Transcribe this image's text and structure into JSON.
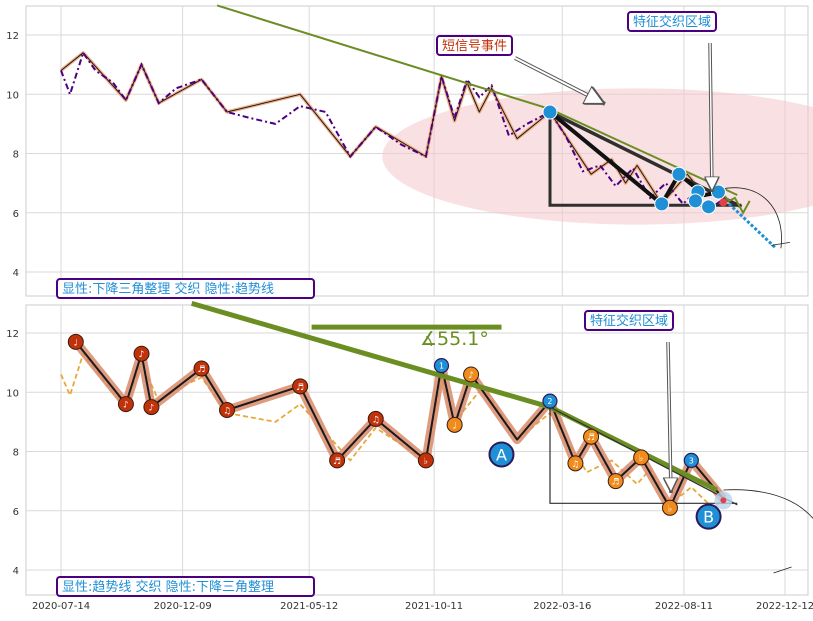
{
  "colors": {
    "panel_bg": "#ffffff",
    "grid": "#d9d9d9",
    "frame": "#cccccc",
    "price_line_top": "#4b0082",
    "price_line_bottom": "#e8a93a",
    "zigzag_fill": "#f3b089",
    "zigzag_line": "#1a1a1a",
    "trend_line": "#6b8e23",
    "triangle": "#2f2f2f",
    "blue_marker": "#1f8fd6",
    "red_marker": "#c0320c",
    "orange_marker": "#f08c1e",
    "ellipse": "#f2c6cc",
    "label_border": "#4b0082",
    "label_text": "#1f8fd6",
    "event_text": "#c0320c"
  },
  "chart_data": [
    {
      "type": "line",
      "panel": "top",
      "ylim": [
        3.5,
        13
      ],
      "yticks": [
        "4",
        "6",
        "8",
        "10",
        "12"
      ],
      "series": [
        {
          "values_by_date": [
            [
              "2020-07-14",
              10.8
            ],
            [
              "2020-07-25",
              10.0
            ],
            [
              "2020-08-10",
              11.4
            ],
            [
              "2020-08-25",
              10.8
            ],
            [
              "2020-09-15",
              10.4
            ],
            [
              "2020-10-01",
              9.8
            ],
            [
              "2020-10-20",
              11.0
            ],
            [
              "2020-11-10",
              9.7
            ],
            [
              "2020-12-01",
              10.2
            ],
            [
              "2021-01-01",
              10.5
            ],
            [
              "2021-02-01",
              9.4
            ],
            [
              "2021-03-01",
              9.2
            ],
            [
              "2021-04-01",
              9.0
            ],
            [
              "2021-05-01",
              9.6
            ],
            [
              "2021-06-01",
              9.4
            ],
            [
              "2021-07-01",
              7.9
            ],
            [
              "2021-08-01",
              8.9
            ],
            [
              "2021-09-01",
              8.3
            ],
            [
              "2021-10-01",
              7.9
            ],
            [
              "2021-10-20",
              10.6
            ],
            [
              "2021-11-05",
              9.2
            ],
            [
              "2021-11-20",
              10.5
            ],
            [
              "2021-12-05",
              9.9
            ],
            [
              "2021-12-20",
              10.3
            ],
            [
              "2022-01-10",
              8.6
            ],
            [
              "2022-02-01",
              9.0
            ],
            [
              "2022-03-01",
              9.4
            ],
            [
              "2022-03-20",
              8.6
            ],
            [
              "2022-04-10",
              7.4
            ],
            [
              "2022-05-01",
              7.6
            ],
            [
              "2022-05-20",
              6.9
            ],
            [
              "2022-06-10",
              7.5
            ],
            [
              "2022-07-01",
              6.5
            ],
            [
              "2022-07-20",
              7.0
            ],
            [
              "2022-08-10",
              6.3
            ],
            [
              "2022-08-25",
              6.7
            ],
            [
              "2022-09-10",
              6.1
            ],
            [
              "2022-09-25",
              6.4
            ]
          ]
        }
      ],
      "zigzag": [
        [
          "2020-07-14",
          10.8
        ],
        [
          "2020-08-10",
          11.4
        ],
        [
          "2020-10-01",
          9.8
        ],
        [
          "2020-10-20",
          11.0
        ],
        [
          "2020-11-10",
          9.7
        ],
        [
          "2021-01-01",
          10.5
        ],
        [
          "2021-02-01",
          9.4
        ],
        [
          "2021-05-01",
          10.0
        ],
        [
          "2021-07-01",
          7.9
        ],
        [
          "2021-08-01",
          8.9
        ],
        [
          "2021-10-01",
          7.9
        ],
        [
          "2021-10-20",
          10.6
        ],
        [
          "2021-11-05",
          9.1
        ],
        [
          "2021-11-20",
          10.4
        ],
        [
          "2021-12-05",
          9.4
        ],
        [
          "2021-12-20",
          10.2
        ],
        [
          "2022-01-20",
          8.5
        ],
        [
          "2022-03-01",
          9.4
        ],
        [
          "2022-04-20",
          7.3
        ],
        [
          "2022-05-15",
          7.8
        ],
        [
          "2022-06-01",
          7.0
        ],
        [
          "2022-06-15",
          7.6
        ],
        [
          "2022-07-15",
          6.3
        ],
        [
          "2022-08-15",
          7.3
        ],
        [
          "2022-09-05",
          6.6
        ],
        [
          "2022-09-25",
          6.7
        ]
      ],
      "trend_line": [
        [
          "2021-01-20",
          13.0
        ],
        [
          "2022-03-01",
          9.5
        ],
        [
          "2022-10-15",
          6.6
        ]
      ],
      "triangle": {
        "apex": [
          "2022-03-01",
          9.4
        ],
        "base_left": [
          "2022-03-01",
          6.25
        ],
        "base_right": [
          "2022-10-20",
          6.25
        ],
        "right_tip": [
          "2022-10-20",
          6.2
        ],
        "upper_edge": [
          [
            "2022-03-01",
            9.4
          ],
          [
            "2022-10-20",
            6.2
          ]
        ],
        "inner_edge": [
          [
            "2022-03-01",
            9.4
          ],
          [
            "2022-07-15",
            6.3
          ]
        ]
      },
      "thick_segments": [
        [
          [
            "2022-03-01",
            9.4
          ],
          [
            "2022-07-15",
            6.3
          ]
        ],
        [
          [
            "2022-07-15",
            6.3
          ],
          [
            "2022-08-05",
            7.3
          ]
        ],
        [
          [
            "2022-08-05",
            7.3
          ],
          [
            "2022-09-05",
            6.6
          ]
        ],
        [
          [
            "2022-09-05",
            6.6
          ],
          [
            "2022-09-25",
            6.7
          ]
        ]
      ],
      "blue_markers": [
        [
          "2022-03-01",
          9.4
        ],
        [
          "2022-07-15",
          6.3
        ],
        [
          "2022-08-05",
          7.3
        ],
        [
          "2022-08-28",
          6.7
        ],
        [
          "2022-08-25",
          6.4
        ],
        [
          "2022-09-10",
          6.2
        ],
        [
          "2022-09-22",
          6.7
        ]
      ],
      "green_tail": [
        [
          "2022-09-25",
          6.7
        ],
        [
          "2022-10-05",
          6.4
        ],
        [
          "2022-10-12",
          6.5
        ],
        [
          "2022-10-22",
          6.0
        ],
        [
          "2022-10-30",
          6.4
        ]
      ],
      "projection_dashed": [
        [
          "2022-10-05",
          6.3
        ],
        [
          "2022-12-01",
          4.8
        ]
      ],
      "ellipse": {
        "center": [
          "2022-06-15",
          7.9
        ],
        "rx_days": 310,
        "ry_value": 2.3
      },
      "annotations": {
        "event": "短信号事件",
        "zone": "特征交织区域",
        "footer": "显性:下降三角整理 交织 隐性:趋势线"
      }
    },
    {
      "type": "line",
      "panel": "bottom",
      "ylim": [
        3.5,
        13
      ],
      "yticks": [
        "4",
        "6",
        "8",
        "10",
        "12"
      ],
      "xticks": [
        "2020-07-14",
        "2020-12-09",
        "2021-05-12",
        "2021-10-11",
        "2022-03-16",
        "2022-08-11",
        "2022-12-12"
      ],
      "series": [
        {
          "values_by_date": [
            [
              "2020-07-14",
              10.6
            ],
            [
              "2020-07-25",
              9.9
            ],
            [
              "2020-08-10",
              11.3
            ],
            [
              "2020-09-15",
              10.0
            ],
            [
              "2020-10-01",
              9.6
            ],
            [
              "2020-10-20",
              11.0
            ],
            [
              "2020-11-10",
              9.7
            ],
            [
              "2020-12-01",
              10.1
            ],
            [
              "2021-01-01",
              10.5
            ],
            [
              "2021-02-01",
              9.3
            ],
            [
              "2021-04-01",
              9.0
            ],
            [
              "2021-05-01",
              9.6
            ],
            [
              "2021-07-01",
              7.7
            ],
            [
              "2021-08-01",
              8.8
            ],
            [
              "2021-10-01",
              7.7
            ],
            [
              "2021-10-20",
              10.5
            ],
            [
              "2021-11-05",
              9.0
            ],
            [
              "2021-12-10",
              10.2
            ],
            [
              "2022-01-20",
              8.4
            ],
            [
              "2022-03-01",
              9.3
            ],
            [
              "2022-04-15",
              7.3
            ],
            [
              "2022-05-15",
              7.7
            ],
            [
              "2022-06-15",
              6.9
            ],
            [
              "2022-07-01",
              7.4
            ],
            [
              "2022-07-25",
              6.2
            ],
            [
              "2022-08-20",
              6.8
            ],
            [
              "2022-09-15",
              6.1
            ],
            [
              "2022-09-28",
              6.4
            ]
          ]
        }
      ],
      "zigzag": [
        [
          "2020-08-01",
          11.7
        ],
        [
          "2020-10-01",
          9.6
        ],
        [
          "2020-10-20",
          11.3
        ],
        [
          "2020-11-01",
          9.5
        ],
        [
          "2021-01-01",
          10.8
        ],
        [
          "2021-02-01",
          9.4
        ],
        [
          "2021-05-01",
          10.2
        ],
        [
          "2021-06-15",
          7.7
        ],
        [
          "2021-08-01",
          9.1
        ],
        [
          "2021-10-01",
          7.7
        ],
        [
          "2021-10-20",
          10.9
        ],
        [
          "2021-11-05",
          8.9
        ],
        [
          "2021-11-25",
          10.6
        ],
        [
          "2022-01-20",
          8.4
        ],
        [
          "2022-03-01",
          9.7
        ],
        [
          "2022-04-01",
          7.6
        ],
        [
          "2022-04-20",
          8.5
        ],
        [
          "2022-05-20",
          7.0
        ],
        [
          "2022-06-20",
          7.8
        ],
        [
          "2022-07-25",
          6.1
        ],
        [
          "2022-08-20",
          7.7
        ],
        [
          "2022-09-28",
          6.4
        ]
      ],
      "trend_line": [
        [
          "2020-12-20",
          13.0
        ],
        [
          "2022-03-01",
          9.5
        ],
        [
          "2022-09-20",
          6.7
        ]
      ],
      "angle_ref_line": [
        [
          "2021-05-15",
          12.2
        ],
        [
          "2022-01-01",
          12.2
        ]
      ],
      "angle_label": "∡55.1°",
      "triangle": {
        "apex": [
          "2022-03-01",
          9.5
        ],
        "base_left": [
          "2022-03-01",
          6.25
        ],
        "base_right": [
          "2022-10-15",
          6.25
        ],
        "upper_edge": [
          [
            "2022-03-01",
            9.5
          ],
          [
            "2022-10-15",
            6.2
          ]
        ]
      },
      "red_markers": [
        {
          "at": [
            "2020-08-01",
            11.7
          ],
          "label": "♩"
        },
        {
          "at": [
            "2020-10-01",
            9.6
          ],
          "label": "♪"
        },
        {
          "at": [
            "2020-10-20",
            11.3
          ],
          "label": "♪"
        },
        {
          "at": [
            "2020-11-01",
            9.5
          ],
          "label": "♪"
        },
        {
          "at": [
            "2021-01-01",
            10.8
          ],
          "label": "♬"
        },
        {
          "at": [
            "2021-02-01",
            9.4
          ],
          "label": "♫"
        },
        {
          "at": [
            "2021-05-01",
            10.2
          ],
          "label": "♬"
        },
        {
          "at": [
            "2021-06-15",
            7.7
          ],
          "label": "♬"
        },
        {
          "at": [
            "2021-08-01",
            9.1
          ],
          "label": "♫"
        },
        {
          "at": [
            "2021-10-01",
            7.7
          ],
          "label": "♭"
        }
      ],
      "orange_markers": [
        {
          "at": [
            "2021-11-05",
            8.9
          ],
          "label": "♩"
        },
        {
          "at": [
            "2021-11-25",
            10.6
          ],
          "label": "♪"
        },
        {
          "at": [
            "2022-04-01",
            7.6
          ],
          "label": "♫"
        },
        {
          "at": [
            "2022-04-20",
            8.5
          ],
          "label": "♬"
        },
        {
          "at": [
            "2022-05-20",
            7.0
          ],
          "label": "♬"
        },
        {
          "at": [
            "2022-06-20",
            7.8
          ],
          "label": "♭"
        },
        {
          "at": [
            "2022-07-25",
            6.1
          ],
          "label": "♭"
        }
      ],
      "blue_markers": [
        {
          "at": [
            "2021-10-20",
            10.9
          ],
          "label": "1"
        },
        {
          "at": [
            "2022-03-01",
            9.7
          ],
          "label": "2"
        },
        {
          "at": [
            "2022-08-20",
            7.7
          ],
          "label": "3"
        }
      ],
      "letter_markers": [
        {
          "at": [
            "2022-01-01",
            7.9
          ],
          "label": "A"
        },
        {
          "at": [
            "2022-09-10",
            5.8
          ],
          "label": "B"
        }
      ],
      "annotations": {
        "zone": "特征交织区域",
        "footer": "显性:趋势线 交织 隐性:下降三角整理"
      }
    }
  ]
}
